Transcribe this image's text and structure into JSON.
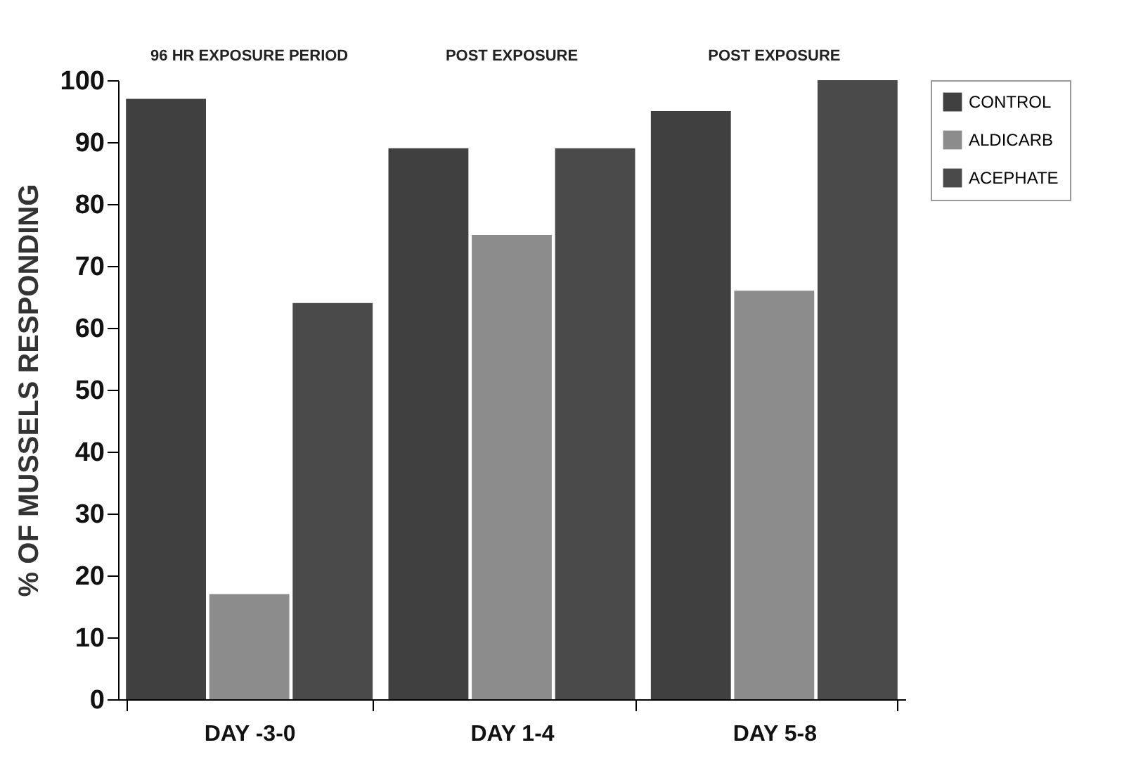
{
  "chart_data": {
    "type": "bar",
    "ylabel": "% OF MUSSELS RESPONDING",
    "categories": [
      "DAY -3-0",
      "DAY 1-4",
      "DAY 5-8"
    ],
    "series": [
      {
        "name": "CONTROL",
        "color": "#404040",
        "values": [
          97,
          89,
          95
        ]
      },
      {
        "name": "ALDICARB",
        "color": "#8c8c8c",
        "values": [
          17,
          75,
          66
        ]
      },
      {
        "name": "ACEPHATE",
        "color": "#4a4a4a",
        "values": [
          64,
          89,
          100
        ]
      }
    ],
    "ylim": [
      0,
      100
    ],
    "yticks": [
      0,
      10,
      20,
      30,
      40,
      50,
      60,
      70,
      80,
      90,
      100
    ],
    "grid": false,
    "legend": "right",
    "annotations": [
      "96 HR EXPOSURE PERIOD",
      "POST EXPOSURE",
      "POST EXPOSURE"
    ]
  }
}
